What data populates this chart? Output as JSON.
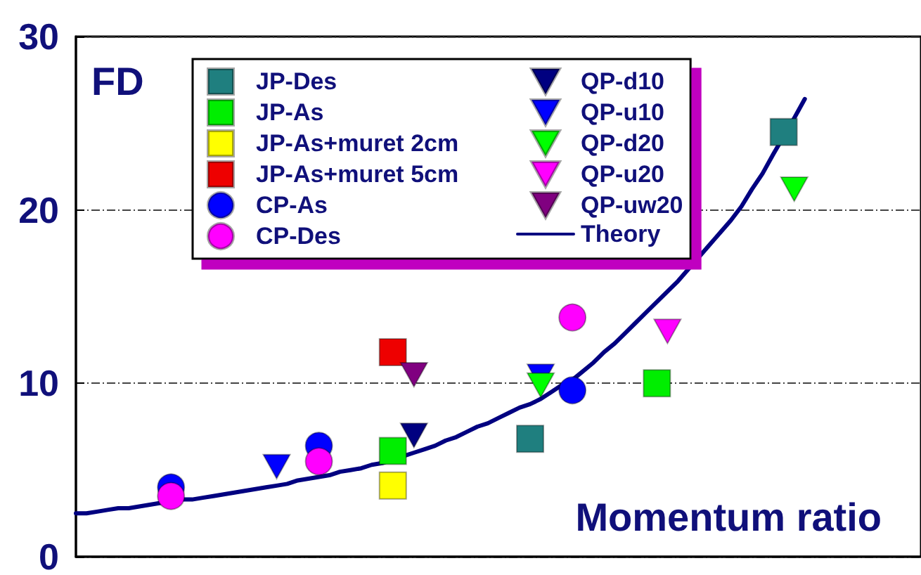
{
  "chart_data": {
    "type": "scatter",
    "xlabel": "Momentum ratio",
    "ylabel": "FD",
    "categories": [
      null,
      null,
      null,
      null,
      null,
      null,
      null,
      null,
      null,
      null,
      null,
      null,
      null,
      null,
      null,
      null,
      null,
      null,
      null,
      null,
      null,
      null,
      null,
      null,
      null,
      null,
      null,
      null,
      null,
      null,
      null,
      null,
      null,
      null,
      null,
      null,
      null,
      null,
      null,
      null,
      null,
      null,
      null,
      null,
      null,
      null,
      null,
      null,
      null,
      null,
      null,
      null,
      null,
      null,
      null,
      null,
      null,
      null,
      null,
      null,
      null,
      null,
      null,
      null,
      null,
      null,
      null,
      null,
      null,
      null,
      null,
      null,
      null,
      null,
      null,
      null,
      null,
      null,
      null,
      null,
      null
    ],
    "ylim": [
      0,
      30
    ],
    "yticks": [
      0,
      10,
      20,
      30
    ],
    "tick_labels": "y",
    "grid": "y",
    "legend": "top",
    "series": [
      {
        "name": "JP-Des",
        "color": "#1f7f7f",
        "marker": "square",
        "values": [
          null,
          null,
          null,
          null,
          null,
          null,
          null,
          null,
          null,
          null,
          null,
          null,
          null,
          null,
          null,
          null,
          null,
          null,
          null,
          null,
          null,
          null,
          null,
          null,
          null,
          null,
          null,
          null,
          null,
          null,
          null,
          null,
          null,
          null,
          null,
          null,
          null,
          null,
          null,
          null,
          null,
          null,
          null,
          6.8,
          null,
          null,
          null,
          null,
          null,
          null,
          null,
          null,
          null,
          null,
          null,
          null,
          null,
          null,
          null,
          null,
          null,
          null,
          null,
          null,
          null,
          null,
          null,
          24.5,
          null,
          null,
          null,
          null,
          null,
          null,
          null,
          null,
          null,
          null,
          null,
          null,
          null
        ]
      },
      {
        "name": "JP-As",
        "color": "#00ee00",
        "marker": "square",
        "values": [
          null,
          null,
          null,
          null,
          null,
          null,
          null,
          null,
          null,
          null,
          null,
          null,
          null,
          null,
          null,
          null,
          null,
          null,
          null,
          null,
          null,
          null,
          null,
          null,
          null,
          null,
          null,
          null,
          null,
          null,
          6.1,
          null,
          null,
          null,
          null,
          null,
          null,
          null,
          null,
          null,
          null,
          null,
          null,
          null,
          null,
          null,
          null,
          null,
          null,
          null,
          null,
          null,
          null,
          null,
          null,
          10.0,
          null,
          null,
          null,
          null,
          null,
          null,
          null,
          null,
          null,
          null,
          null,
          null,
          null,
          null,
          null,
          null,
          null,
          null,
          null,
          null,
          null,
          null,
          null,
          null,
          null
        ]
      },
      {
        "name": "JP-As+muret 2cm",
        "color": "#ffff00",
        "marker": "square",
        "values": [
          null,
          null,
          null,
          null,
          null,
          null,
          null,
          null,
          null,
          null,
          null,
          null,
          null,
          null,
          null,
          null,
          null,
          null,
          null,
          null,
          null,
          null,
          null,
          null,
          null,
          null,
          null,
          null,
          null,
          null,
          4.1,
          null,
          null,
          null,
          null,
          null,
          null,
          null,
          null,
          null,
          null,
          null,
          null,
          null,
          null,
          null,
          null,
          null,
          null,
          null,
          null,
          null,
          null,
          null,
          null,
          null,
          null,
          null,
          null,
          null,
          null,
          null,
          null,
          null,
          null,
          null,
          null,
          null,
          null,
          null,
          null,
          null,
          null,
          null,
          null,
          null,
          null,
          null,
          null,
          null,
          null
        ]
      },
      {
        "name": "JP-As+muret 5cm",
        "color": "#ee0000",
        "marker": "square",
        "values": [
          null,
          null,
          null,
          null,
          null,
          null,
          null,
          null,
          null,
          null,
          null,
          null,
          null,
          null,
          null,
          null,
          null,
          null,
          null,
          null,
          null,
          null,
          null,
          null,
          null,
          null,
          null,
          null,
          null,
          null,
          11.8,
          null,
          null,
          null,
          null,
          null,
          null,
          null,
          null,
          null,
          null,
          null,
          null,
          null,
          null,
          null,
          null,
          null,
          null,
          null,
          null,
          null,
          null,
          null,
          null,
          null,
          null,
          null,
          null,
          null,
          null,
          null,
          null,
          null,
          null,
          null,
          null,
          null,
          null,
          null,
          null,
          null,
          null,
          null,
          null,
          null,
          null,
          null,
          null,
          null,
          null
        ]
      },
      {
        "name": "CP-As",
        "color": "#0000ff",
        "marker": "circle",
        "values": [
          null,
          null,
          null,
          null,
          null,
          null,
          null,
          null,
          null,
          4.0,
          null,
          null,
          null,
          null,
          null,
          null,
          null,
          null,
          null,
          null,
          null,
          null,
          null,
          6.4,
          null,
          null,
          null,
          null,
          null,
          null,
          null,
          null,
          null,
          null,
          null,
          null,
          null,
          null,
          null,
          null,
          null,
          null,
          null,
          null,
          null,
          null,
          null,
          9.6,
          null,
          null,
          null,
          null,
          null,
          null,
          null,
          null,
          null,
          null,
          null,
          null,
          null,
          null,
          null,
          null,
          null,
          null,
          null,
          null,
          null,
          null,
          null,
          null,
          null,
          null,
          null,
          null,
          null,
          null,
          null,
          null,
          null
        ]
      },
      {
        "name": "CP-Des",
        "color": "#ff00ff",
        "marker": "circle",
        "values": [
          null,
          null,
          null,
          null,
          null,
          null,
          null,
          null,
          null,
          3.5,
          null,
          null,
          null,
          null,
          null,
          null,
          null,
          null,
          null,
          null,
          null,
          null,
          null,
          5.5,
          null,
          null,
          null,
          null,
          null,
          null,
          null,
          null,
          null,
          null,
          null,
          null,
          null,
          null,
          null,
          null,
          null,
          null,
          null,
          null,
          null,
          null,
          null,
          13.8,
          null,
          null,
          null,
          null,
          null,
          null,
          null,
          null,
          null,
          null,
          null,
          null,
          null,
          null,
          null,
          null,
          null,
          null,
          null,
          null,
          null,
          null,
          null,
          null,
          null,
          null,
          null,
          null,
          null,
          null,
          null,
          null,
          null
        ]
      },
      {
        "name": "QP-d10",
        "color": "#000080",
        "marker": "triangle",
        "values": [
          null,
          null,
          null,
          null,
          null,
          null,
          null,
          null,
          null,
          null,
          null,
          null,
          null,
          null,
          null,
          null,
          null,
          null,
          null,
          null,
          null,
          null,
          null,
          null,
          null,
          null,
          null,
          null,
          null,
          null,
          null,
          null,
          7.0,
          null,
          null,
          null,
          null,
          null,
          null,
          null,
          null,
          null,
          null,
          null,
          null,
          null,
          null,
          null,
          null,
          null,
          null,
          null,
          null,
          null,
          null,
          null,
          null,
          null,
          null,
          null,
          null,
          null,
          null,
          null,
          null,
          null,
          null,
          null,
          null,
          null,
          null,
          null,
          null,
          null,
          null,
          null,
          null,
          null,
          null,
          null,
          null
        ]
      },
      {
        "name": "QP-u10",
        "color": "#0000ff",
        "marker": "triangle",
        "values": [
          null,
          null,
          null,
          null,
          null,
          null,
          null,
          null,
          null,
          null,
          null,
          null,
          null,
          null,
          null,
          null,
          null,
          null,
          null,
          5.2,
          null,
          null,
          null,
          null,
          null,
          null,
          null,
          null,
          null,
          null,
          null,
          null,
          null,
          null,
          null,
          null,
          null,
          null,
          null,
          null,
          null,
          null,
          null,
          null,
          10.4,
          null,
          null,
          null,
          null,
          null,
          null,
          null,
          null,
          null,
          null,
          null,
          null,
          null,
          null,
          null,
          null,
          null,
          null,
          null,
          null,
          null,
          null,
          null,
          null,
          null,
          null,
          null,
          null,
          null,
          null,
          null,
          null,
          null,
          null,
          null,
          null
        ]
      },
      {
        "name": "QP-d20",
        "color": "#00ff00",
        "marker": "triangle",
        "values": [
          null,
          null,
          null,
          null,
          null,
          null,
          null,
          null,
          null,
          null,
          null,
          null,
          null,
          null,
          null,
          null,
          null,
          null,
          null,
          null,
          null,
          null,
          null,
          null,
          null,
          null,
          null,
          null,
          null,
          null,
          null,
          null,
          null,
          null,
          null,
          null,
          null,
          null,
          null,
          null,
          null,
          null,
          null,
          null,
          9.9,
          null,
          null,
          null,
          null,
          null,
          null,
          null,
          null,
          null,
          null,
          null,
          null,
          null,
          null,
          null,
          null,
          null,
          null,
          null,
          null,
          null,
          null,
          null,
          21.2,
          null,
          null,
          null,
          null,
          null,
          null,
          null,
          null,
          null,
          null,
          null,
          null
        ]
      },
      {
        "name": "QP-u20",
        "color": "#ff00ff",
        "marker": "triangle",
        "values": [
          null,
          null,
          null,
          null,
          null,
          null,
          null,
          null,
          null,
          null,
          null,
          null,
          null,
          null,
          null,
          null,
          null,
          null,
          null,
          null,
          null,
          null,
          null,
          null,
          null,
          null,
          null,
          null,
          null,
          null,
          null,
          null,
          null,
          null,
          null,
          null,
          null,
          null,
          null,
          null,
          null,
          null,
          null,
          null,
          null,
          null,
          null,
          null,
          null,
          null,
          null,
          null,
          null,
          null,
          null,
          null,
          13.0,
          null,
          null,
          null,
          null,
          null,
          null,
          null,
          null,
          null,
          null,
          null,
          null,
          null,
          null,
          null,
          null,
          null,
          null,
          null,
          null,
          null,
          null,
          null,
          null
        ]
      },
      {
        "name": "QP-uw20",
        "color": "#800080",
        "marker": "triangle",
        "values": [
          null,
          null,
          null,
          null,
          null,
          null,
          null,
          null,
          null,
          null,
          null,
          null,
          null,
          null,
          null,
          null,
          null,
          null,
          null,
          null,
          null,
          null,
          null,
          null,
          null,
          null,
          null,
          null,
          null,
          null,
          null,
          null,
          10.5,
          null,
          null,
          null,
          null,
          null,
          null,
          null,
          null,
          null,
          null,
          null,
          null,
          null,
          null,
          null,
          null,
          null,
          null,
          null,
          null,
          null,
          null,
          null,
          null,
          null,
          null,
          null,
          null,
          null,
          null,
          null,
          null,
          null,
          null,
          null,
          null,
          null,
          null,
          null,
          null,
          null,
          null,
          null,
          null,
          null,
          null,
          null,
          null
        ]
      },
      {
        "name": "Theory",
        "type": "line",
        "color": "#000080",
        "marker": "none",
        "line_style": "solid",
        "values": [
          2.5,
          2.5,
          2.6,
          2.7,
          2.8,
          2.8,
          2.9,
          3.0,
          3.1,
          null,
          3.3,
          3.3,
          3.4,
          3.5,
          3.6,
          3.7,
          3.8,
          3.9,
          4.0,
          4.1,
          4.2,
          4.4,
          4.5,
          4.6,
          4.7,
          4.9,
          5.0,
          5.1,
          5.3,
          5.4,
          null,
          5.8,
          6.0,
          6.2,
          6.4,
          6.7,
          6.9,
          7.2,
          7.5,
          7.7,
          8.0,
          8.3,
          8.6,
          8.8,
          9.1,
          9.5,
          9.9,
          10.2,
          10.7,
          11.2,
          11.8,
          12.3,
          12.9,
          13.5,
          14.1,
          14.7,
          15.3,
          15.9,
          16.6,
          17.3,
          18.0,
          18.7,
          19.4,
          20.2,
          21.2,
          22.1,
          23.2,
          null,
          25.3,
          26.4,
          null,
          null,
          null,
          null,
          null,
          null,
          null,
          null,
          null,
          null,
          null
        ]
      }
    ]
  }
}
